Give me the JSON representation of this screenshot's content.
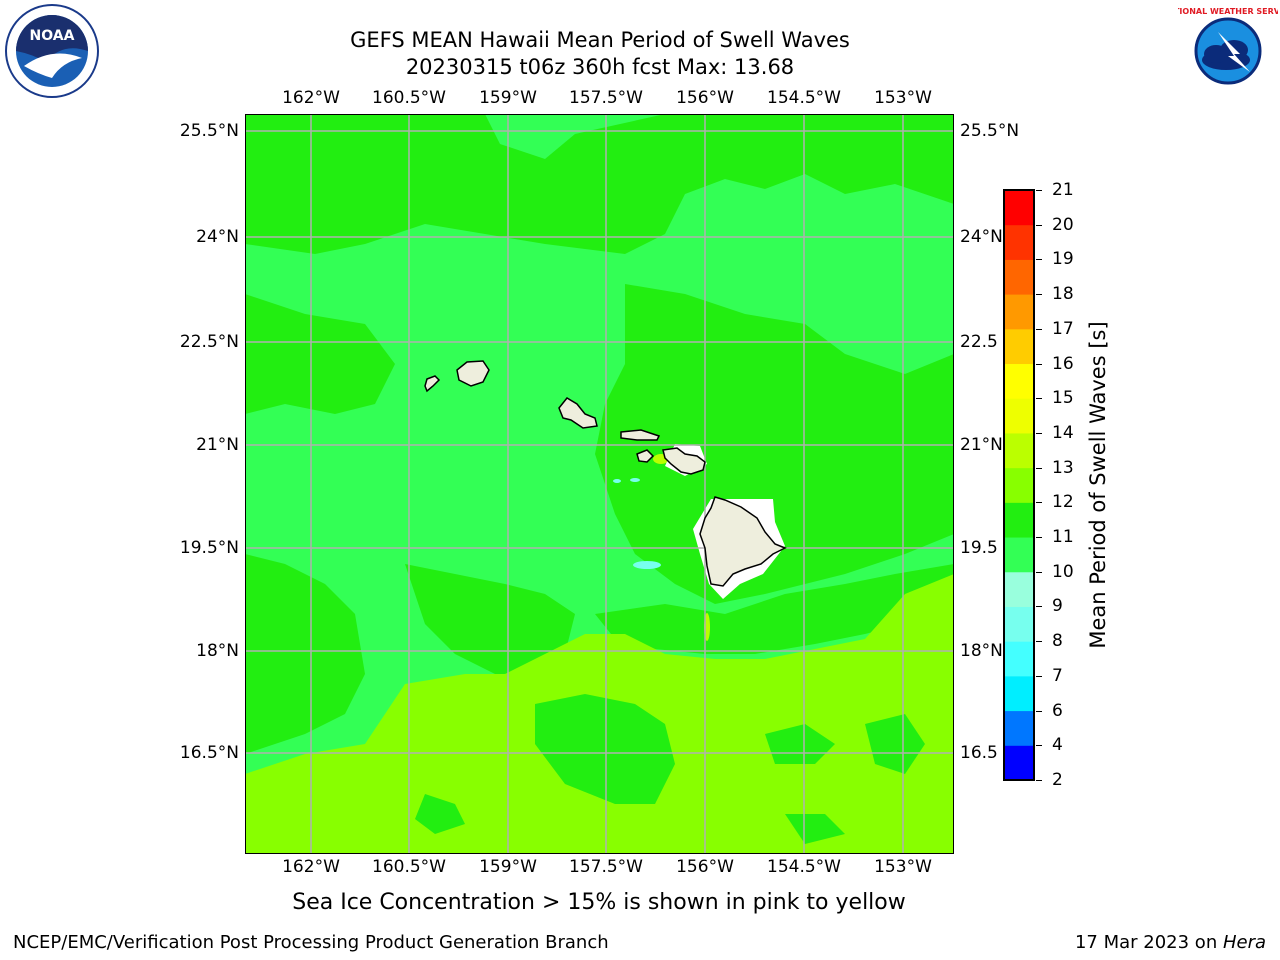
{
  "header": {
    "title_line1": "GEFS MEAN Hawaii Mean Period of Swell Waves",
    "title_line2": "20230315 t06z 360h fcst   Max: 13.68"
  },
  "map": {
    "lon_labels": [
      "162°W",
      "160.5°W",
      "159°W",
      "157.5°W",
      "156°W",
      "154.5°W",
      "153°W"
    ],
    "lat_labels": [
      "25.5°N",
      "24°N",
      "22.5°N",
      "21°N",
      "19.5°N",
      "18°N",
      "16.5°N"
    ],
    "lat_labels_right": [
      "25.5°N",
      "24°N",
      "22.5",
      "21°N",
      "19.5",
      "18°N",
      "16.5"
    ],
    "colors": {
      "green_10_11": "#33ff55",
      "green_11_12": "#22ee11",
      "lime_12_13": "#88ff00",
      "land": "#eeeedd"
    }
  },
  "colorbar": {
    "title": "Mean Period of Swell Waves [s]",
    "ticks": [
      "2",
      "4",
      "6",
      "7",
      "8",
      "9",
      "10",
      "11",
      "12",
      "13",
      "14",
      "15",
      "16",
      "17",
      "18",
      "19",
      "20",
      "21"
    ],
    "colors": [
      "#0000ff",
      "#0077ff",
      "#00eeff",
      "#44ffff",
      "#77ffee",
      "#99ffdd",
      "#33ff55",
      "#22ee11",
      "#88ff00",
      "#bbff00",
      "#eeff00",
      "#ffff00",
      "#ffcc00",
      "#ff9900",
      "#ff6600",
      "#ff3300",
      "#ff0000"
    ]
  },
  "footer": {
    "note": "Sea Ice Concentration > 15% is shown in pink to yellow",
    "left": "NCEP/EMC/Verification Post Processing Product Generation Branch",
    "right_date": "17 Mar 2023 on ",
    "right_host": "Hera"
  },
  "logos": {
    "noaa_text": "NOAA",
    "nws_text": "NATIONAL WEATHER SERVICE"
  }
}
